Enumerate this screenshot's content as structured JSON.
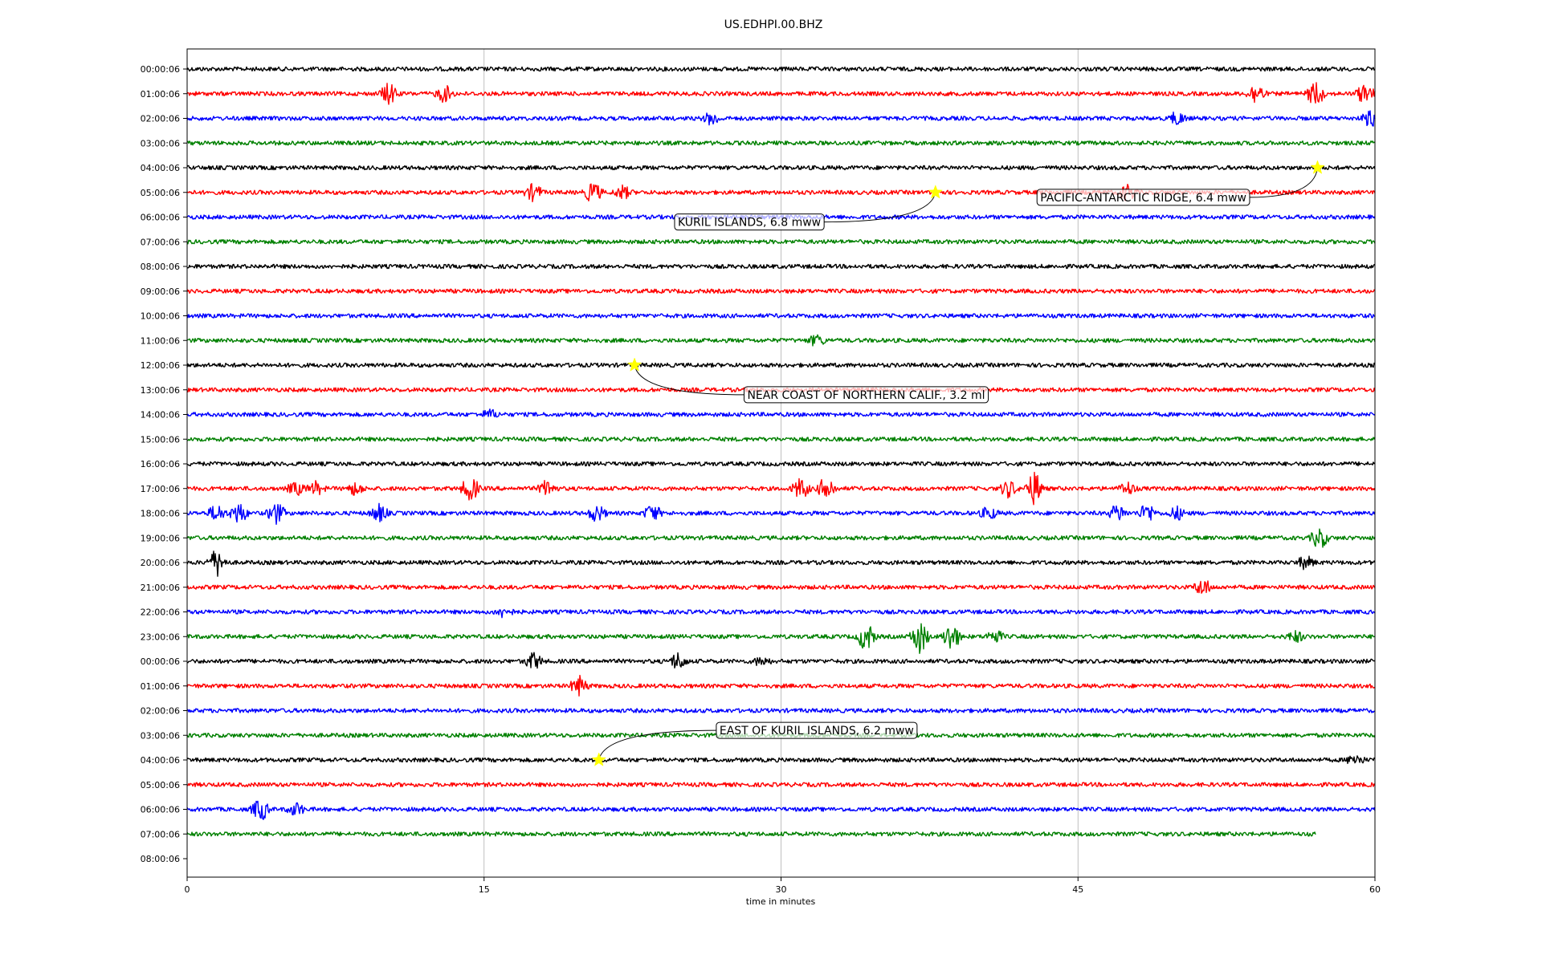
{
  "chart_data": {
    "type": "line",
    "title": "US.EDHPI.00.BHZ",
    "xlabel": "time in minutes",
    "xlim": [
      0,
      60
    ],
    "xticks": [
      0,
      15,
      30,
      45,
      60
    ],
    "xgrid": true,
    "row_labels": [
      "00:00:06",
      "01:00:06",
      "02:00:06",
      "03:00:06",
      "04:00:06",
      "05:00:06",
      "06:00:06",
      "07:00:06",
      "08:00:06",
      "09:00:06",
      "10:00:06",
      "11:00:06",
      "12:00:06",
      "13:00:06",
      "14:00:06",
      "15:00:06",
      "16:00:06",
      "17:00:06",
      "18:00:06",
      "19:00:06",
      "20:00:06",
      "21:00:06",
      "22:00:06",
      "23:00:06",
      "00:00:06",
      "01:00:06",
      "02:00:06",
      "03:00:06",
      "04:00:06",
      "05:00:06",
      "06:00:06",
      "07:00:06",
      "08:00:06"
    ],
    "trace_colors": [
      "#000000",
      "#ff0000",
      "#0000ff",
      "#008000"
    ],
    "last_trace_end_minute": 57,
    "bursts": [
      {
        "row": 1,
        "minute": 10.2,
        "amp": 1.0
      },
      {
        "row": 1,
        "minute": 13.0,
        "amp": 0.8
      },
      {
        "row": 1,
        "minute": 54.0,
        "amp": 1.0
      },
      {
        "row": 1,
        "minute": 57.0,
        "amp": 1.2
      },
      {
        "row": 1,
        "minute": 59.5,
        "amp": 1.0
      },
      {
        "row": 2,
        "minute": 26.5,
        "amp": 0.6
      },
      {
        "row": 2,
        "minute": 50.0,
        "amp": 0.6
      },
      {
        "row": 2,
        "minute": 59.8,
        "amp": 0.8
      },
      {
        "row": 5,
        "minute": 17.5,
        "amp": 0.8
      },
      {
        "row": 5,
        "minute": 20.5,
        "amp": 1.0
      },
      {
        "row": 5,
        "minute": 22.0,
        "amp": 0.6
      },
      {
        "row": 5,
        "minute": 47.5,
        "amp": 0.8
      },
      {
        "row": 11,
        "minute": 31.8,
        "amp": 0.5
      },
      {
        "row": 14,
        "minute": 15.3,
        "amp": 0.4
      },
      {
        "row": 17,
        "minute": 5.5,
        "amp": 0.6
      },
      {
        "row": 17,
        "minute": 6.5,
        "amp": 0.6
      },
      {
        "row": 17,
        "minute": 8.5,
        "amp": 0.6
      },
      {
        "row": 17,
        "minute": 14.3,
        "amp": 1.2
      },
      {
        "row": 17,
        "minute": 18.2,
        "amp": 0.8
      },
      {
        "row": 17,
        "minute": 31.0,
        "amp": 1.0
      },
      {
        "row": 17,
        "minute": 32.3,
        "amp": 1.2
      },
      {
        "row": 17,
        "minute": 41.5,
        "amp": 0.8
      },
      {
        "row": 17,
        "minute": 42.8,
        "amp": 1.6
      },
      {
        "row": 17,
        "minute": 47.5,
        "amp": 0.6
      },
      {
        "row": 18,
        "minute": 1.5,
        "amp": 0.8
      },
      {
        "row": 18,
        "minute": 2.6,
        "amp": 1.0
      },
      {
        "row": 18,
        "minute": 4.5,
        "amp": 1.0
      },
      {
        "row": 18,
        "minute": 9.7,
        "amp": 0.8
      },
      {
        "row": 18,
        "minute": 20.7,
        "amp": 0.8
      },
      {
        "row": 18,
        "minute": 23.5,
        "amp": 0.8
      },
      {
        "row": 18,
        "minute": 40.5,
        "amp": 0.6
      },
      {
        "row": 18,
        "minute": 47.0,
        "amp": 0.8
      },
      {
        "row": 18,
        "minute": 48.5,
        "amp": 0.9
      },
      {
        "row": 18,
        "minute": 50.0,
        "amp": 0.6
      },
      {
        "row": 19,
        "minute": 57.2,
        "amp": 1.0
      },
      {
        "row": 20,
        "minute": 1.5,
        "amp": 1.3
      },
      {
        "row": 20,
        "minute": 56.5,
        "amp": 0.6
      },
      {
        "row": 21,
        "minute": 51.3,
        "amp": 0.8
      },
      {
        "row": 22,
        "minute": 16.0,
        "amp": 0.5
      },
      {
        "row": 23,
        "minute": 34.3,
        "amp": 1.4
      },
      {
        "row": 23,
        "minute": 37.0,
        "amp": 1.6
      },
      {
        "row": 23,
        "minute": 38.6,
        "amp": 1.4
      },
      {
        "row": 23,
        "minute": 40.8,
        "amp": 0.6
      },
      {
        "row": 23,
        "minute": 56.0,
        "amp": 0.5
      },
      {
        "row": 24,
        "minute": 17.5,
        "amp": 0.8
      },
      {
        "row": 24,
        "minute": 24.8,
        "amp": 0.8
      },
      {
        "row": 24,
        "minute": 29.0,
        "amp": 0.4
      },
      {
        "row": 25,
        "minute": 19.8,
        "amp": 0.9
      },
      {
        "row": 28,
        "minute": 59.0,
        "amp": 0.5
      },
      {
        "row": 30,
        "minute": 3.7,
        "amp": 1.1
      },
      {
        "row": 30,
        "minute": 5.5,
        "amp": 0.6
      }
    ],
    "events": [
      {
        "row": 4,
        "minute": 57.1,
        "label": "PACIFIC-ANTARCTIC RIDGE, 6.4 mww",
        "label_row": 5.2,
        "label_minute": 48.3
      },
      {
        "row": 5,
        "minute": 37.8,
        "label": "KURIL ISLANDS, 6.8 mww",
        "label_row": 6.2,
        "label_minute": 28.4
      },
      {
        "row": 12,
        "minute": 22.6,
        "label": "NEAR COAST OF NORTHERN CALIF., 3.2 ml",
        "label_row": 13.2,
        "label_minute": 34.3
      },
      {
        "row": 28,
        "minute": 20.8,
        "label": "EAST OF KURIL ISLANDS, 6.2 mww",
        "label_row": 26.8,
        "label_minute": 31.8
      }
    ]
  }
}
